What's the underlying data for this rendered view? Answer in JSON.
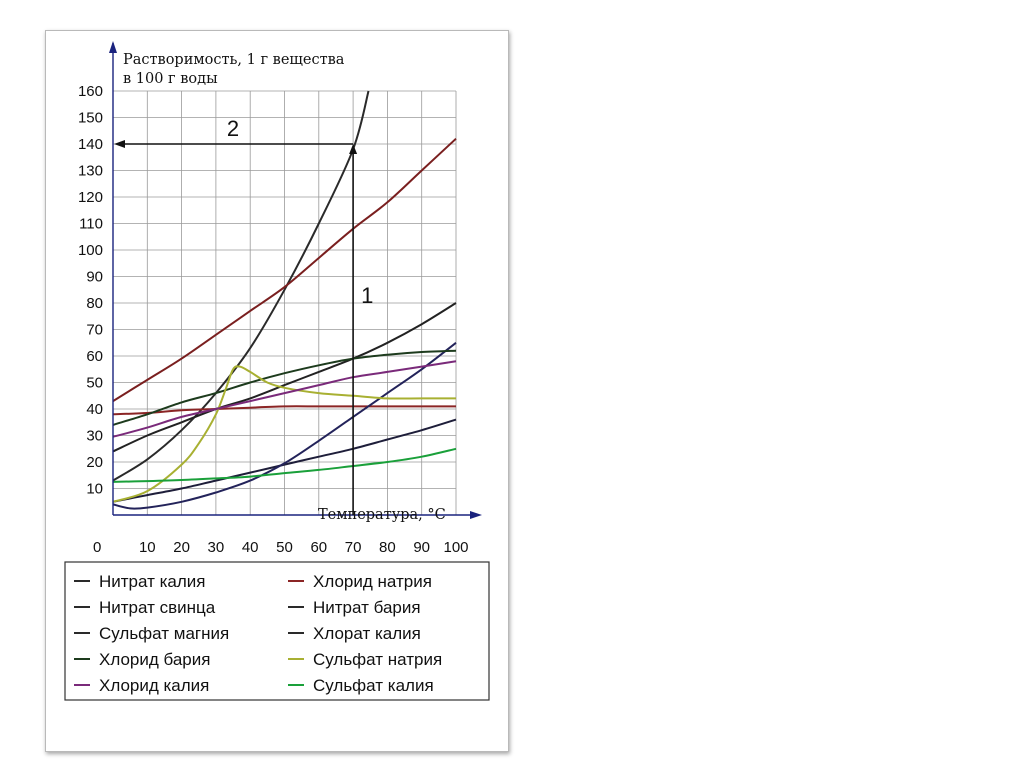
{
  "chart_data": {
    "type": "line",
    "ylabel_line1": "Растворимость, 1 г вещества",
    "ylabel_line2": "в 100 г воды",
    "xlabel": "Температура, °С",
    "origin_label": "0",
    "xlim": [
      0,
      100
    ],
    "ylim": [
      0,
      160
    ],
    "x_ticks": [
      10,
      20,
      30,
      40,
      50,
      60,
      70,
      80,
      90,
      100
    ],
    "y_ticks": [
      10,
      20,
      30,
      40,
      50,
      60,
      70,
      80,
      90,
      100,
      110,
      120,
      130,
      140,
      150,
      160
    ],
    "grid": true,
    "series": [
      {
        "name": "Нитрат калия",
        "color": "#2a2a2a",
        "x": [
          0,
          10,
          20,
          30,
          40,
          50,
          60,
          70,
          74.5
        ],
        "y": [
          13,
          21,
          32,
          46,
          63,
          85,
          110,
          138,
          160
        ]
      },
      {
        "name": "Хлорид натрия",
        "color": "#8b2525",
        "x": [
          0,
          10,
          20,
          30,
          40,
          50,
          60,
          70,
          80,
          90,
          100
        ],
        "y": [
          38,
          38.5,
          39.5,
          40,
          40.5,
          41,
          41,
          41,
          41,
          41,
          41
        ]
      },
      {
        "name": "Нитрат свинца",
        "color": "#7a1f1f",
        "x": [
          0,
          10,
          20,
          30,
          40,
          50,
          60,
          70,
          80,
          90,
          100
        ],
        "y": [
          43,
          51,
          59,
          68,
          77,
          86,
          97,
          108,
          118,
          130,
          142
        ]
      },
      {
        "name": "Нитрат бария",
        "color": "#1e1e3a",
        "x": [
          0,
          10,
          20,
          30,
          40,
          50,
          60,
          70,
          80,
          90,
          100
        ],
        "y": [
          5,
          7.5,
          10,
          13,
          16,
          19,
          22,
          25,
          28.5,
          32,
          36
        ]
      },
      {
        "name": "Сульфат магния",
        "color": "#222222",
        "x": [
          0,
          10,
          20,
          30,
          40,
          50,
          60,
          70,
          80,
          90,
          100
        ],
        "y": [
          24,
          30,
          35,
          40,
          44,
          49,
          54,
          59,
          65,
          72,
          80
        ]
      },
      {
        "name": "Хлорат калия",
        "color": "#23235a",
        "x": [
          0,
          5,
          10,
          20,
          30,
          40,
          50,
          60,
          70,
          80,
          90,
          100
        ],
        "y": [
          4,
          2.5,
          2.8,
          5,
          8.5,
          13,
          19.5,
          28,
          37,
          46,
          55,
          65
        ]
      },
      {
        "name": "Хлорид бария",
        "color": "#1d3b1d",
        "x": [
          0,
          10,
          20,
          30,
          40,
          50,
          60,
          70,
          80,
          90,
          100
        ],
        "y": [
          34,
          38,
          42.5,
          46,
          50,
          53.5,
          56.5,
          59,
          60.5,
          61.5,
          62
        ]
      },
      {
        "name": "Сульфат натрия",
        "color": "#a8b032",
        "x": [
          0,
          10,
          20,
          25,
          30,
          33,
          35,
          37,
          40,
          45,
          50,
          60,
          70,
          80,
          90,
          100
        ],
        "y": [
          5,
          9,
          19,
          27,
          38,
          48,
          55,
          56,
          54,
          50,
          48,
          46,
          45,
          44,
          44,
          44
        ]
      },
      {
        "name": "Хлорид калия",
        "color": "#7a2a7a",
        "x": [
          0,
          10,
          20,
          30,
          40,
          50,
          60,
          70,
          80,
          90,
          100
        ],
        "y": [
          29.5,
          33,
          37,
          40,
          43,
          46,
          49,
          52,
          54,
          56,
          58
        ]
      },
      {
        "name": "Сульфат калия",
        "color": "#1aa03a",
        "x": [
          0,
          10,
          20,
          30,
          40,
          50,
          60,
          70,
          80,
          90,
          100
        ],
        "y": [
          12.5,
          12.8,
          13.2,
          13.8,
          14.5,
          15.8,
          17,
          18.5,
          20,
          22,
          25
        ]
      }
    ],
    "annotations": [
      {
        "label": "1",
        "type": "vertical-arrow",
        "x": 70,
        "from_y": 0,
        "to_y": 140
      },
      {
        "label": "2",
        "type": "horizontal-arrow",
        "y": 140,
        "from_x": 70,
        "to_x": 0
      }
    ],
    "legend": {
      "placement": "bottom",
      "columns": 2,
      "left": [
        {
          "name": "Нитрат калия",
          "color": "#2a2a2a"
        },
        {
          "name": "Нитрат свинца",
          "color": "#2a2a2a"
        },
        {
          "name": "Сульфат магния",
          "color": "#2a2a2a"
        },
        {
          "name": "Хлорид бария",
          "color": "#1d3b1d"
        },
        {
          "name": "Хлорид калия",
          "color": "#7a2a7a"
        }
      ],
      "right": [
        {
          "name": "Хлорид натрия",
          "color": "#8b2525"
        },
        {
          "name": "Нитрат бария",
          "color": "#2a2a2a"
        },
        {
          "name": "Хлорат калия",
          "color": "#2a2a2a"
        },
        {
          "name": "Сульфат натрия",
          "color": "#a8b032"
        },
        {
          "name": "Сульфат калия",
          "color": "#1aa03a"
        }
      ]
    }
  }
}
